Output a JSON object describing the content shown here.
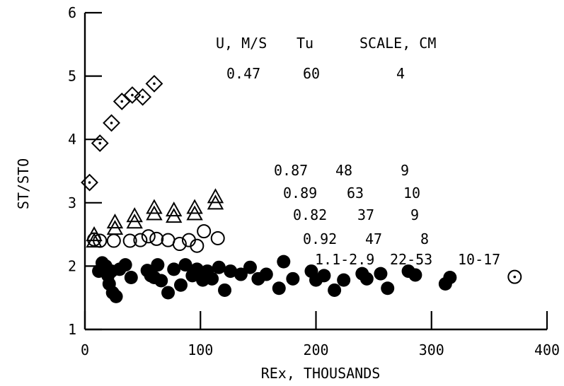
{
  "chart_data": {
    "type": "scatter",
    "xlabel": "REx, THOUSANDS",
    "ylabel": "ST/STO",
    "xlim": [
      0,
      400
    ],
    "ylim": [
      1,
      6
    ],
    "xticks": [
      0,
      100,
      200,
      300,
      400
    ],
    "yticks": [
      1,
      2,
      3,
      4,
      5,
      6
    ],
    "xticklabels": [
      "0",
      "100",
      "200",
      "300",
      "400"
    ],
    "yticklabels": [
      "1",
      "2",
      "3",
      "4",
      "5",
      "6"
    ],
    "grid": false,
    "legend_header": {
      "u": "U, M/S",
      "tu": "Tu",
      "scale": "SCALE, CM"
    },
    "series": [
      {
        "marker": "diamond-dot",
        "u": "0.47",
        "tu": "60",
        "scale": "4",
        "x": [
          4,
          13,
          23,
          32,
          41,
          50,
          60
        ],
        "y": [
          3.32,
          3.94,
          4.26,
          4.6,
          4.7,
          4.67,
          4.88
        ]
      },
      {
        "marker": "triangle-double",
        "u": "0.87",
        "tu": "48",
        "scale": "9",
        "x": [
          8,
          26,
          43,
          60,
          77,
          95,
          113
        ],
        "y": [
          2.45,
          2.65,
          2.75,
          2.88,
          2.84,
          2.88,
          3.05
        ]
      },
      {
        "marker": "circle-open",
        "u": "0.89",
        "tu": "63",
        "scale": "10",
        "x": [
          8,
          13,
          25,
          39,
          48,
          55,
          62,
          72,
          82,
          90,
          97,
          103,
          115
        ],
        "y": [
          2.42,
          2.4,
          2.4,
          2.4,
          2.41,
          2.47,
          2.43,
          2.41,
          2.35,
          2.41,
          2.32,
          2.55,
          2.44
        ]
      },
      {
        "marker": "circle-open",
        "u": "0.82",
        "tu": "37",
        "scale": "9",
        "x": [],
        "y": []
      },
      {
        "marker": "circle-open",
        "u": "0.92",
        "tu": "47",
        "scale": "8",
        "x": [],
        "y": []
      },
      {
        "marker": "circle-filled",
        "u": "1.1-2.9",
        "tu": "22-53",
        "scale": "10-17",
        "x": [
          12,
          15,
          18,
          20,
          21,
          23,
          24,
          27,
          30,
          35,
          40,
          54,
          57,
          60,
          63,
          66,
          72,
          77,
          83,
          87,
          93,
          97,
          102,
          106,
          110,
          116,
          121,
          126,
          135,
          143,
          150,
          157,
          168,
          172,
          180,
          196,
          200,
          207,
          216,
          224,
          240,
          244,
          256,
          262,
          280,
          286,
          312,
          316
        ],
        "y": [
          1.92,
          2.05,
          2.0,
          1.85,
          1.72,
          1.92,
          1.58,
          1.52,
          1.95,
          2.02,
          1.82,
          1.93,
          1.85,
          1.82,
          2.02,
          1.77,
          1.58,
          1.95,
          1.7,
          2.02,
          1.85,
          1.95,
          1.78,
          1.92,
          1.8,
          1.98,
          1.62,
          1.92,
          1.87,
          1.98,
          1.8,
          1.87,
          1.65,
          2.07,
          1.8,
          1.92,
          1.78,
          1.85,
          1.62,
          1.78,
          1.88,
          1.8,
          1.88,
          1.65,
          1.92,
          1.86,
          1.72,
          1.82
        ]
      },
      {
        "marker": "circle-dot",
        "u": "",
        "tu": "",
        "scale": "",
        "x": [
          372
        ],
        "y": [
          1.83
        ]
      }
    ]
  }
}
